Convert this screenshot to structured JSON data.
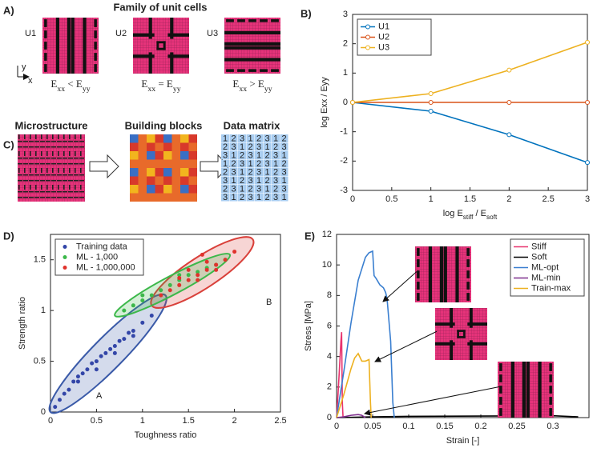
{
  "panel_a": {
    "label": "A)",
    "title": "Family of unit cells",
    "axis_x": "x",
    "axis_y": "y",
    "cells": [
      {
        "name": "U1",
        "caption": [
          {
            "text": "E"
          },
          {
            "text": "xx",
            "sub": true
          },
          {
            "text": " < E"
          },
          {
            "text": "yy",
            "sub": true
          }
        ]
      },
      {
        "name": "U2",
        "caption": [
          {
            "text": "E"
          },
          {
            "text": "xx",
            "sub": true
          },
          {
            "text": " = E"
          },
          {
            "text": "yy",
            "sub": true
          }
        ]
      },
      {
        "name": "U3",
        "caption": [
          {
            "text": "E"
          },
          {
            "text": "xx",
            "sub": true
          },
          {
            "text": " > E"
          },
          {
            "text": "yy",
            "sub": true
          }
        ]
      }
    ]
  },
  "panel_c": {
    "label": "C)",
    "steps": [
      "Microstructure",
      "Building blocks",
      "Data matrix"
    ],
    "data_matrix": [
      [
        1,
        2,
        3,
        1,
        2,
        3,
        1,
        2
      ],
      [
        2,
        3,
        1,
        2,
        3,
        1,
        2,
        3
      ],
      [
        3,
        1,
        2,
        3,
        1,
        2,
        3,
        1
      ],
      [
        1,
        2,
        3,
        1,
        2,
        3,
        1,
        2
      ],
      [
        2,
        3,
        1,
        2,
        3,
        1,
        2,
        3
      ],
      [
        3,
        1,
        2,
        3,
        1,
        2,
        3,
        1
      ],
      [
        2,
        3,
        1,
        2,
        3,
        1,
        2,
        3
      ],
      [
        3,
        1,
        2,
        3,
        1,
        2,
        3,
        1
      ]
    ]
  },
  "chart_data": [
    {
      "type": "line",
      "panel": "B)",
      "x": [
        0,
        1,
        2,
        3
      ],
      "series": [
        {
          "name": "U1",
          "color": "#0072BD",
          "values": [
            0,
            -0.3,
            -1.1,
            -2.05
          ]
        },
        {
          "name": "U2",
          "color": "#D95319",
          "values": [
            0,
            0,
            0,
            0
          ]
        },
        {
          "name": "U3",
          "color": "#EDB120",
          "values": [
            0,
            0.3,
            1.1,
            2.05
          ]
        }
      ],
      "xlim": [
        0,
        3
      ],
      "ylim": [
        -3,
        3
      ],
      "xticks": [
        0,
        0.5,
        1,
        1.5,
        2,
        2.5,
        3
      ],
      "yticks": [
        -3,
        -2,
        -1,
        0,
        1,
        2,
        3
      ],
      "xlabel": [
        {
          "text": "log E"
        },
        {
          "text": "stiff",
          "sub": true
        },
        {
          "text": " / E"
        },
        {
          "text": "soft",
          "sub": true
        }
      ],
      "ylabel": "log Exx / Eyy",
      "markers": true,
      "legend": "upper left"
    },
    {
      "type": "scatter",
      "panel": "D)",
      "series": [
        {
          "name": "Training data",
          "color": "#3346a8",
          "x": [
            0.05,
            0.1,
            0.15,
            0.2,
            0.25,
            0.3,
            0.35,
            0.4,
            0.45,
            0.5,
            0.55,
            0.6,
            0.65,
            0.7,
            0.75,
            0.8,
            0.85,
            0.9,
            1.0,
            1.1,
            0.3,
            0.5,
            0.7,
            0.9
          ],
          "values": [
            0.05,
            0.12,
            0.18,
            0.22,
            0.3,
            0.35,
            0.38,
            0.42,
            0.48,
            0.5,
            0.55,
            0.58,
            0.62,
            0.65,
            0.7,
            0.72,
            0.78,
            0.8,
            0.88,
            0.95,
            0.3,
            0.42,
            0.58,
            0.75
          ]
        },
        {
          "name": "ML - 1,000",
          "color": "#3cb84a",
          "x": [
            0.8,
            0.9,
            1.0,
            1.1,
            1.2,
            1.3,
            1.4,
            1.5,
            1.6,
            1.7,
            1.8,
            1.9,
            1.0,
            1.4
          ],
          "values": [
            1.0,
            1.05,
            1.1,
            1.15,
            1.2,
            1.25,
            1.3,
            1.35,
            1.38,
            1.42,
            1.45,
            1.5,
            1.15,
            1.35
          ]
        },
        {
          "name": "ML - 1,000,000",
          "color": "#e0322c",
          "x": [
            1.2,
            1.3,
            1.4,
            1.5,
            1.6,
            1.7,
            1.8,
            1.9,
            2.0,
            1.5,
            1.6,
            1.7,
            1.8,
            1.4,
            1.65
          ],
          "values": [
            1.15,
            1.2,
            1.25,
            1.3,
            1.35,
            1.4,
            1.45,
            1.5,
            1.58,
            1.4,
            1.3,
            1.48,
            1.4,
            1.32,
            1.55
          ]
        }
      ],
      "regions": [
        {
          "label": "A",
          "color": "#3a5aa8",
          "from": [
            0.0,
            0.0
          ],
          "to": [
            1.25,
            1.15
          ],
          "width": 0.17
        },
        {
          "label": "B",
          "color": "#d9403a",
          "from": [
            1.1,
            1.05
          ],
          "to": [
            2.2,
            1.7
          ],
          "width": 0.17
        },
        {
          "color": "#3cb84a",
          "from": [
            0.7,
            0.95
          ],
          "to": [
            1.95,
            1.55
          ],
          "width": 0.1
        }
      ],
      "xlim": [
        0,
        2.5
      ],
      "ylim": [
        0,
        1.75
      ],
      "xticks": [
        0,
        0.5,
        1,
        1.5,
        2,
        2.5
      ],
      "yticks": [
        0,
        0.5,
        1,
        1.5
      ],
      "xlabel": "Toughness ratio",
      "ylabel": "Strength ratio",
      "legend": "upper left"
    },
    {
      "type": "line",
      "panel": "E)",
      "series": [
        {
          "name": "Stiff",
          "color": "#e8336e",
          "x": [
            0,
            0.002,
            0.004,
            0.006,
            0.007,
            0.008,
            0.009
          ],
          "values": [
            0,
            1.5,
            3.2,
            5.0,
            5.6,
            1,
            0
          ]
        },
        {
          "name": "Soft",
          "color": "#000000",
          "x": [
            0,
            0.05,
            0.1,
            0.2,
            0.3,
            0.335
          ],
          "values": [
            0,
            0.05,
            0.08,
            0.1,
            0.12,
            0.05
          ]
        },
        {
          "name": "ML-opt",
          "color": "#3a7fd0",
          "x": [
            0,
            0.01,
            0.02,
            0.03,
            0.04,
            0.045,
            0.05,
            0.052,
            0.055,
            0.06,
            0.065,
            0.068,
            0.07,
            0.075,
            0.078,
            0.08
          ],
          "values": [
            0,
            3,
            6.2,
            9,
            10.5,
            10.8,
            10.9,
            9.3,
            9.1,
            8.7,
            8.5,
            8.2,
            7.8,
            5,
            1,
            0
          ]
        },
        {
          "name": "ML-min",
          "color": "#7e2f8e",
          "x": [
            0,
            0.01,
            0.02,
            0.03,
            0.035,
            0.04
          ],
          "values": [
            0,
            0.05,
            0.15,
            0.2,
            0.15,
            0
          ]
        },
        {
          "name": "Train-max",
          "color": "#EDB120",
          "x": [
            0,
            0.01,
            0.02,
            0.025,
            0.03,
            0.035,
            0.04,
            0.045,
            0.047,
            0.048
          ],
          "values": [
            0,
            1.5,
            3.2,
            3.9,
            4.2,
            3.7,
            3.7,
            3.8,
            1,
            0
          ]
        }
      ],
      "xlim": [
        0,
        0.35
      ],
      "ylim": [
        0,
        12
      ],
      "xticks": [
        0,
        0.05,
        0.1,
        0.15,
        0.2,
        0.25,
        0.3
      ],
      "yticks": [
        0,
        2,
        4,
        6,
        8,
        10,
        12
      ],
      "xlabel": "Strain [-]",
      "ylabel": "Stress [MPa]",
      "markers": false,
      "legend": "upper right"
    }
  ]
}
